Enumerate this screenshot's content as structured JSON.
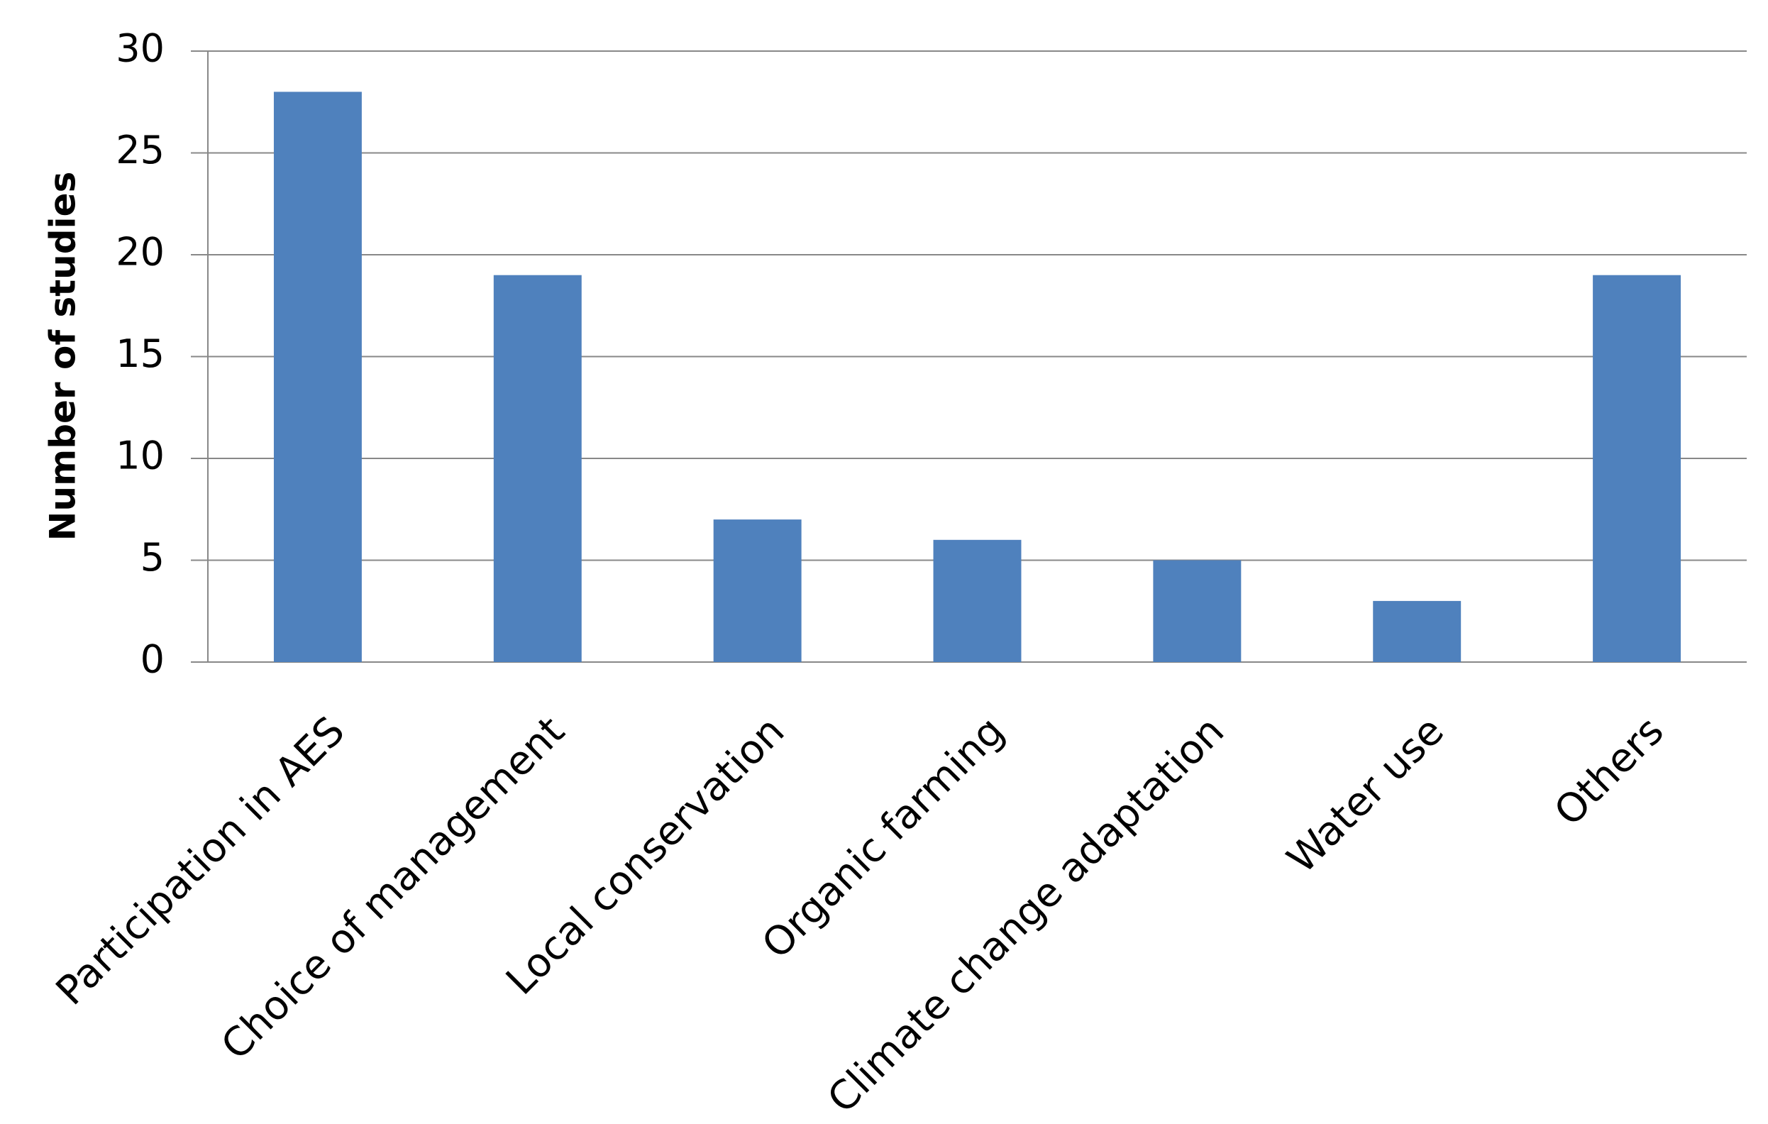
{
  "chart_data": {
    "type": "bar",
    "y_label": "Number of studies",
    "categories": [
      "Participation in AES",
      "Choice of management",
      "Local conservation",
      "Organic farming",
      "Climate change adaptation",
      "Water use",
      "Others"
    ],
    "values": [
      28,
      19,
      7,
      6,
      5,
      3,
      19
    ],
    "color": "#4f81bd",
    "ylim": [
      0,
      30
    ],
    "yticks": [
      0,
      5,
      10,
      15,
      20,
      25,
      30
    ],
    "grid": true
  }
}
